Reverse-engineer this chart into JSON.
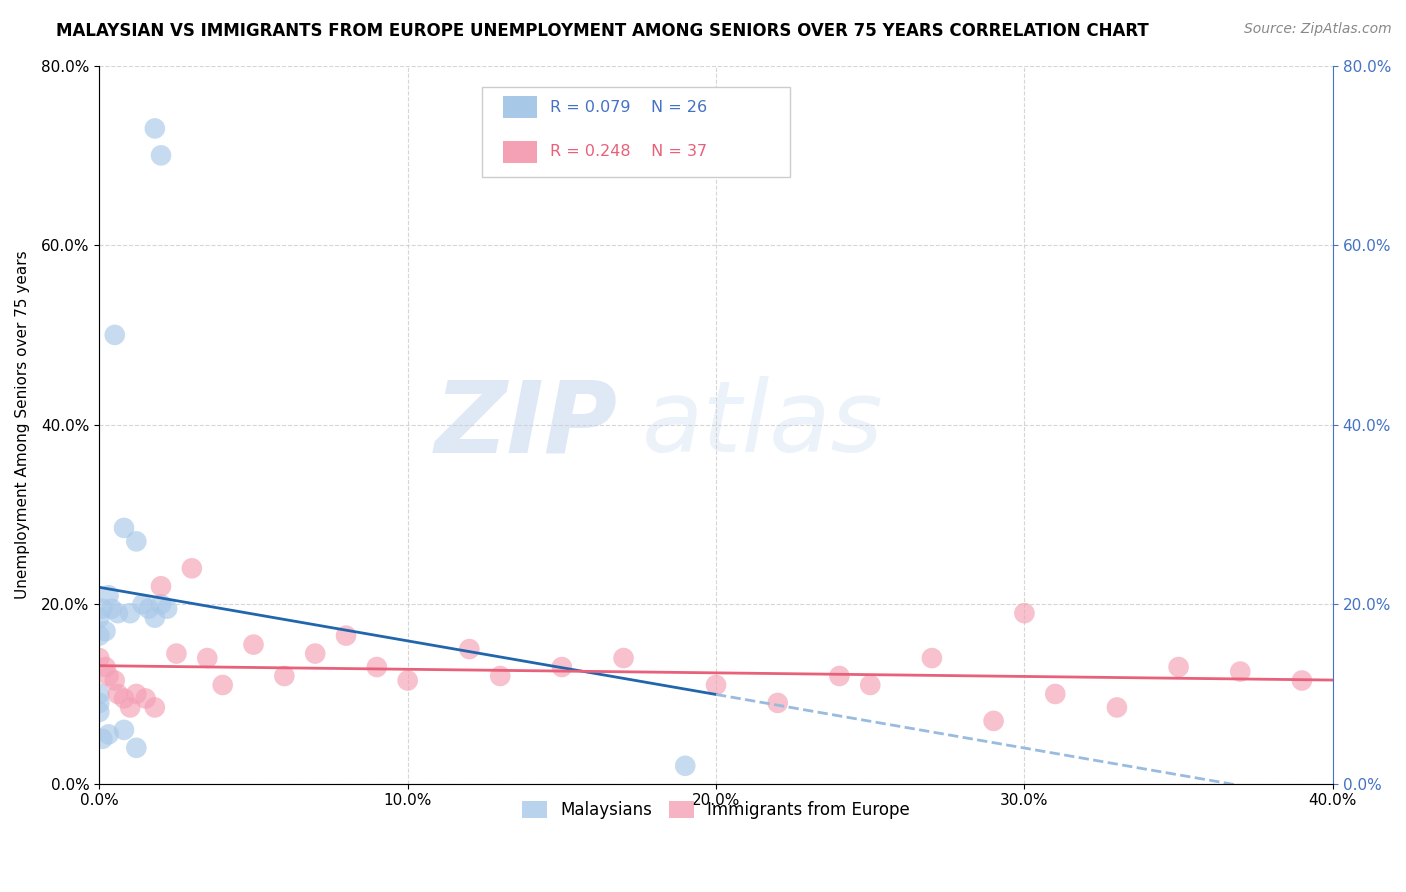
{
  "title": "MALAYSIAN VS IMMIGRANTS FROM EUROPE UNEMPLOYMENT AMONG SENIORS OVER 75 YEARS CORRELATION CHART",
  "source": "Source: ZipAtlas.com",
  "ylabel": "Unemployment Among Seniors over 75 years",
  "xlim": [
    0.0,
    0.4
  ],
  "ylim": [
    0.0,
    0.8
  ],
  "blue_color": "#a8c8e8",
  "pink_color": "#f4a0b5",
  "blue_line_color": "#2166ac",
  "pink_line_color": "#e8607a",
  "dashed_line_color": "#99bbdd",
  "watermark_zip": "ZIP",
  "watermark_atlas": "atlas",
  "malaysian_x": [
    0.018,
    0.02,
    0.005,
    0.008,
    0.012,
    0.003,
    0.001,
    0.0,
    0.0,
    0.002,
    0.004,
    0.006,
    0.01,
    0.014,
    0.016,
    0.018,
    0.02,
    0.022,
    0.003,
    0.001,
    0.0,
    0.0,
    0.0,
    0.008,
    0.012,
    0.19
  ],
  "malaysian_y": [
    0.73,
    0.7,
    0.5,
    0.285,
    0.27,
    0.21,
    0.195,
    0.185,
    0.165,
    0.17,
    0.195,
    0.19,
    0.19,
    0.2,
    0.195,
    0.185,
    0.2,
    0.195,
    0.055,
    0.05,
    0.1,
    0.09,
    0.08,
    0.06,
    0.04,
    0.02
  ],
  "europe_x": [
    0.0,
    0.002,
    0.003,
    0.005,
    0.006,
    0.008,
    0.01,
    0.012,
    0.015,
    0.018,
    0.02,
    0.025,
    0.03,
    0.035,
    0.04,
    0.05,
    0.06,
    0.07,
    0.08,
    0.09,
    0.1,
    0.12,
    0.13,
    0.15,
    0.17,
    0.2,
    0.22,
    0.24,
    0.25,
    0.27,
    0.29,
    0.31,
    0.33,
    0.35,
    0.37,
    0.39,
    0.3
  ],
  "europe_y": [
    0.14,
    0.13,
    0.12,
    0.115,
    0.1,
    0.095,
    0.085,
    0.1,
    0.095,
    0.085,
    0.22,
    0.145,
    0.24,
    0.14,
    0.11,
    0.155,
    0.12,
    0.145,
    0.165,
    0.13,
    0.115,
    0.15,
    0.12,
    0.13,
    0.14,
    0.11,
    0.09,
    0.12,
    0.11,
    0.14,
    0.07,
    0.1,
    0.085,
    0.13,
    0.125,
    0.115,
    0.19
  ],
  "xticks": [
    0.0,
    0.1,
    0.2,
    0.3,
    0.4
  ],
  "yticks": [
    0.0,
    0.2,
    0.4,
    0.6,
    0.8
  ]
}
